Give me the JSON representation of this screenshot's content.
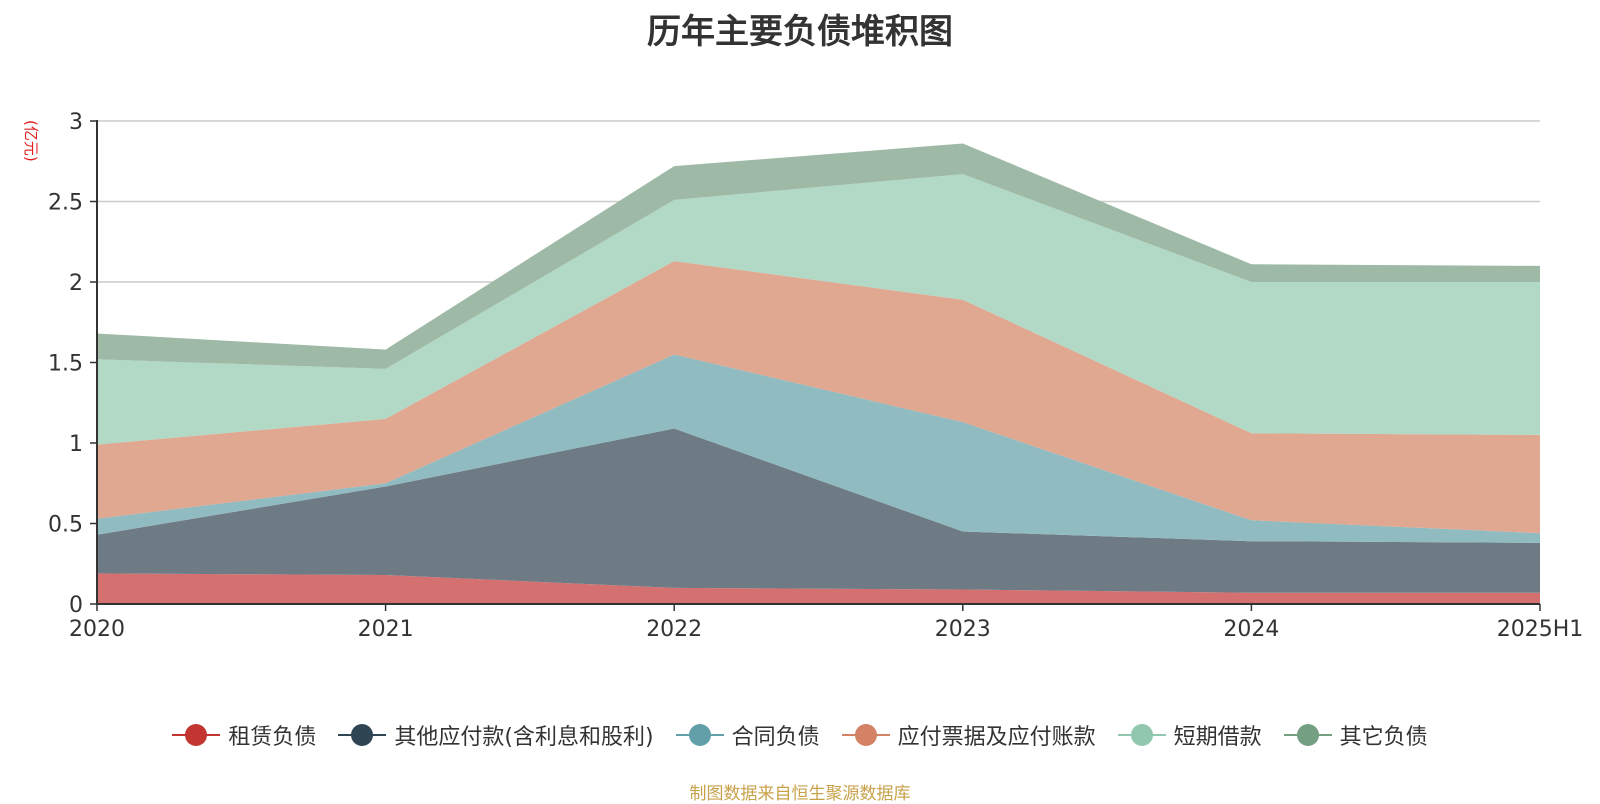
{
  "title": "历年主要负债堆积图",
  "unit_label": "(亿元)",
  "source_text": "制图数据来自恒生聚源数据库",
  "chart_data": {
    "type": "area",
    "stacked": true,
    "title": "历年主要负债堆积图",
    "ylabel": "(亿元)",
    "categories": [
      "2020",
      "2021",
      "2022",
      "2023",
      "2024",
      "2025H1"
    ],
    "y_ticks": [
      "0",
      "0.5",
      "1",
      "1.5",
      "2",
      "2.5",
      "3"
    ],
    "ylim": [
      0,
      3
    ],
    "grid": true,
    "legend_position": "bottom",
    "series": [
      {
        "name": "租赁负债",
        "color": "#c23531",
        "fill": "#d4706f",
        "values": [
          0.19,
          0.18,
          0.1,
          0.09,
          0.07,
          0.07
        ]
      },
      {
        "name": "其他应付款(含利息和股利)",
        "color": "#2f4554",
        "fill": "#6e7b85",
        "values": [
          0.24,
          0.55,
          0.99,
          0.36,
          0.32,
          0.31
        ]
      },
      {
        "name": "合同负债",
        "color": "#61a0a8",
        "fill": "#90bbc1",
        "values": [
          0.1,
          0.02,
          0.46,
          0.68,
          0.13,
          0.06
        ]
      },
      {
        "name": "应付票据及应付账款",
        "color": "#d48265",
        "fill": "#e0a791",
        "values": [
          0.46,
          0.4,
          0.58,
          0.76,
          0.54,
          0.61
        ]
      },
      {
        "name": "短期借款",
        "color": "#91c7ae",
        "fill": "#b2d8c6",
        "values": [
          0.53,
          0.31,
          0.38,
          0.78,
          0.94,
          0.95
        ]
      },
      {
        "name": "其它负债",
        "color": "#749f83",
        "fill": "#9eb9a6",
        "values": [
          0.16,
          0.12,
          0.21,
          0.19,
          0.11,
          0.1
        ]
      }
    ]
  }
}
